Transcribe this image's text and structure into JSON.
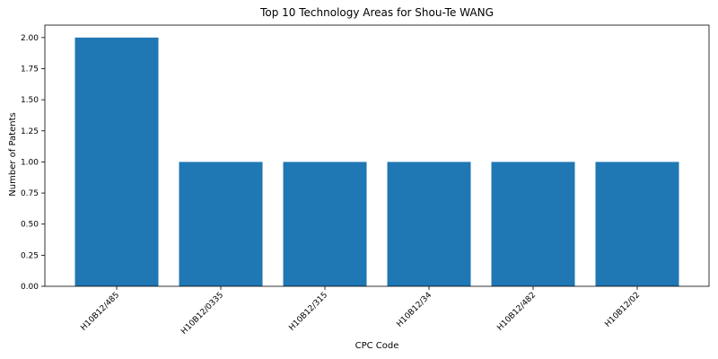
{
  "chart_data": {
    "type": "bar",
    "title": "Top 10 Technology Areas for Shou-Te WANG",
    "xlabel": "CPC Code",
    "ylabel": "Number of Patents",
    "categories": [
      "H10B12/485",
      "H10B12/0335",
      "H10B12/315",
      "H10B12/34",
      "H10B12/482",
      "H10B12/02"
    ],
    "values": [
      2,
      1,
      1,
      1,
      1,
      1
    ],
    "ylim": [
      0,
      2.1
    ],
    "yticks": [
      "0.00",
      "0.25",
      "0.50",
      "0.75",
      "1.00",
      "1.25",
      "1.50",
      "1.75",
      "2.00"
    ],
    "bar_color": "#1f77b4",
    "grid": false,
    "legend": "none"
  }
}
